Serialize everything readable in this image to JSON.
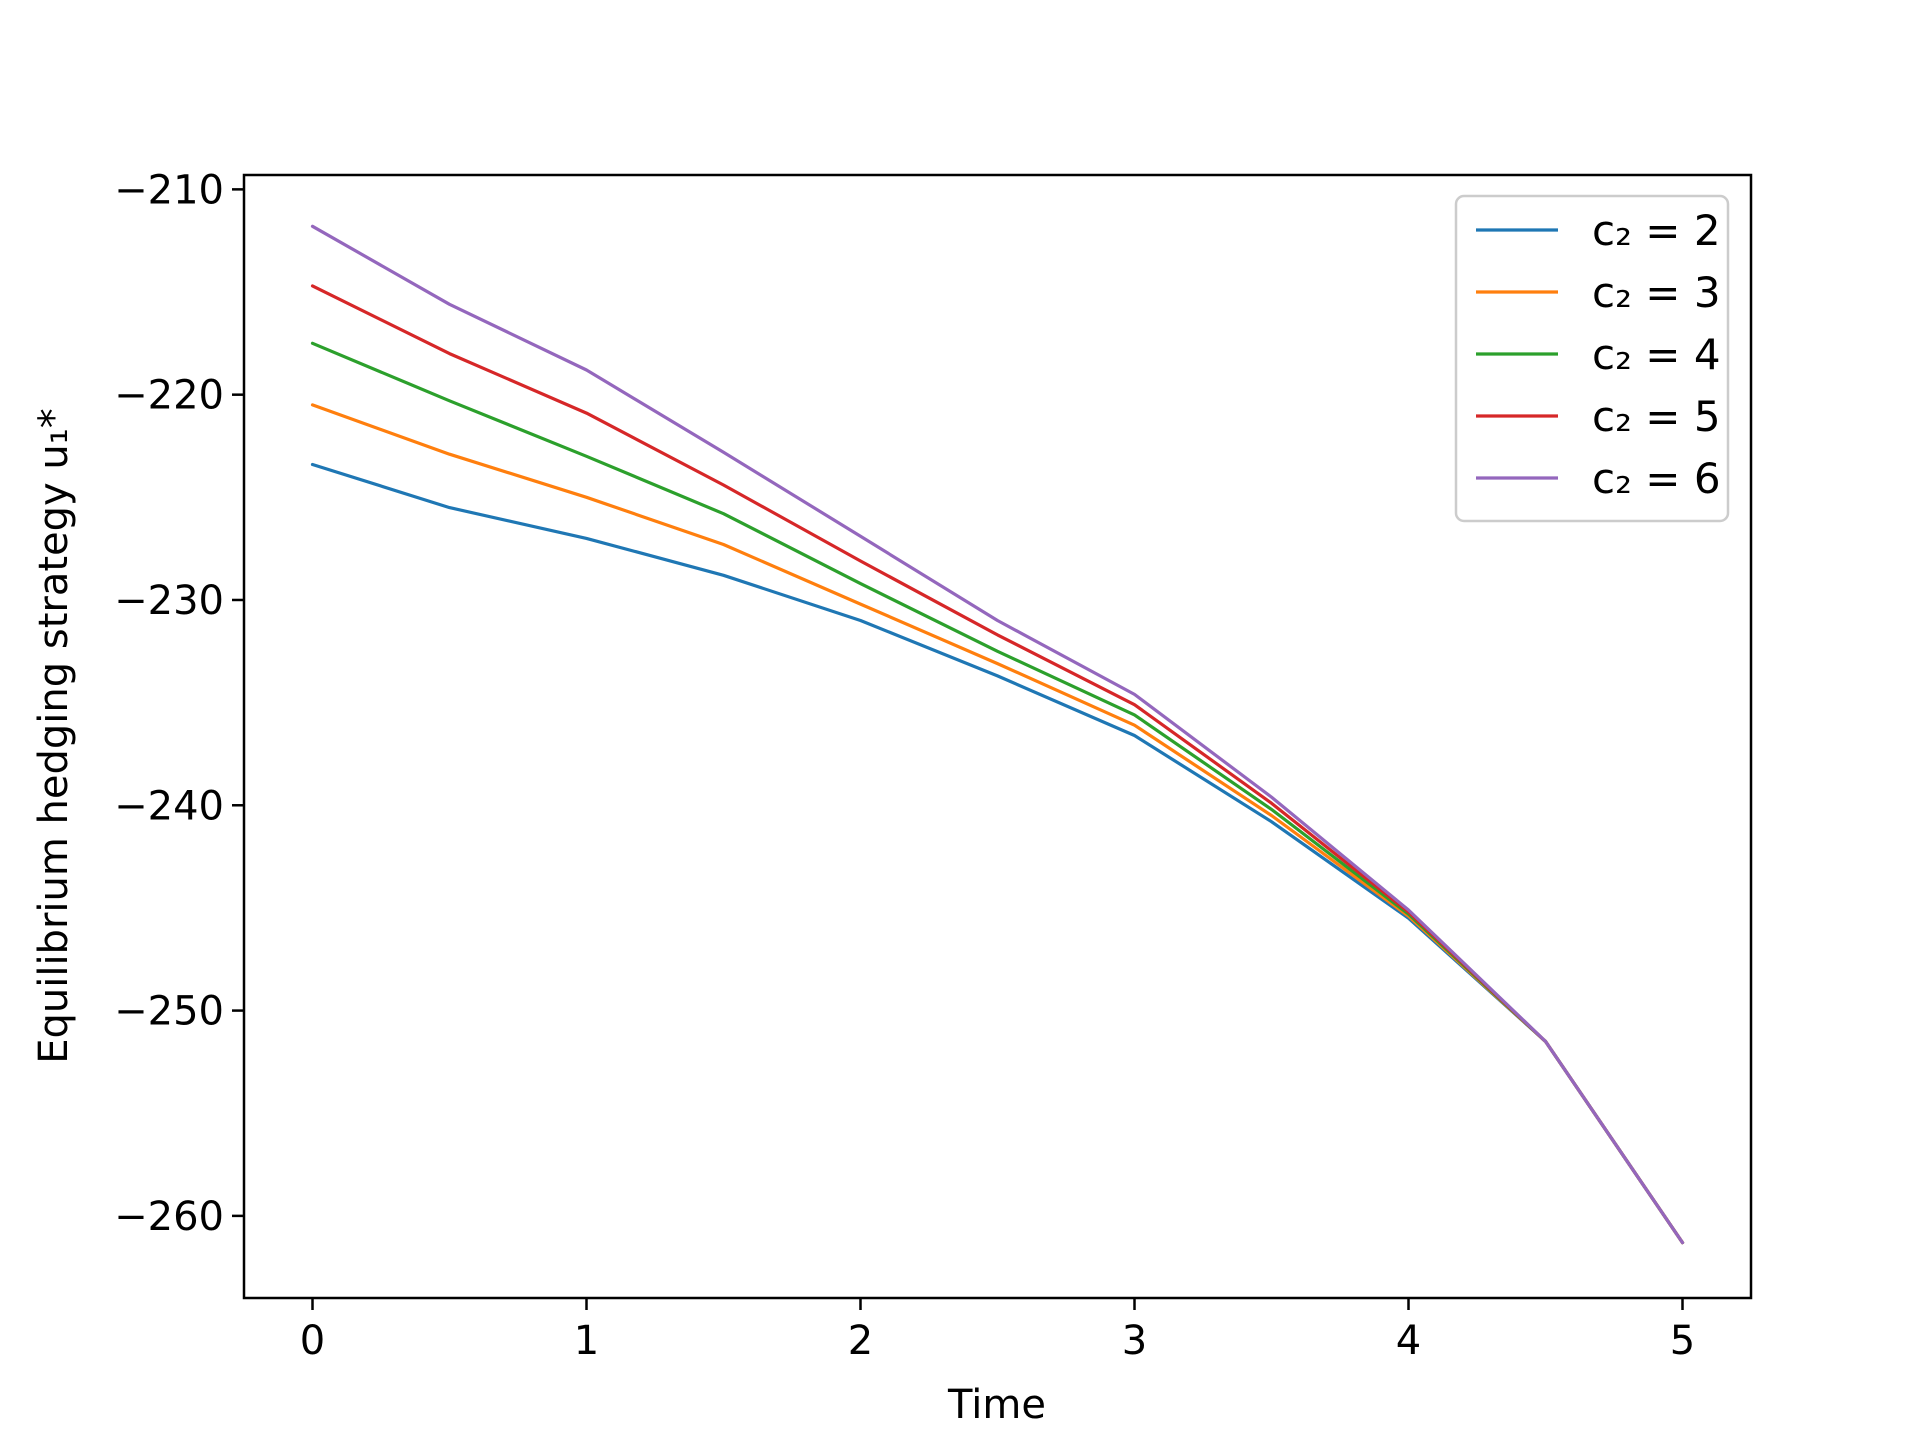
{
  "chart_data": {
    "type": "line",
    "title": "",
    "xlabel": "Time",
    "ylabel": "Equilibrium hedging strategy u₁*",
    "xlim": [
      -0.25,
      5.25
    ],
    "ylim": [
      -264,
      -209.3
    ],
    "xticks": [
      0,
      1,
      2,
      3,
      4,
      5
    ],
    "xtick_labels": [
      "0",
      "1",
      "2",
      "3",
      "4",
      "5"
    ],
    "yticks": [
      -210,
      -220,
      -230,
      -240,
      -250,
      -260
    ],
    "ytick_labels": [
      "−210",
      "−220",
      "−230",
      "−240",
      "−250",
      "−260"
    ],
    "grid": false,
    "legend_position": "top-right",
    "series": [
      {
        "name": "c₂ = 2",
        "color": "#1f77b4",
        "x": [
          0,
          0.5,
          1.0,
          1.5,
          2.0,
          2.5,
          3.0,
          3.5,
          4.0,
          4.5,
          5.0
        ],
        "y": [
          -223.4,
          -225.5,
          -227.0,
          -228.8,
          -231.0,
          -233.7,
          -236.6,
          -240.8,
          -245.5,
          -251.5,
          -261.3
        ]
      },
      {
        "name": "c₂ = 3",
        "color": "#ff7f0e",
        "x": [
          0,
          0.5,
          1.0,
          1.5,
          2.0,
          2.5,
          3.0,
          3.5,
          4.0,
          4.5,
          5.0
        ],
        "y": [
          -220.5,
          -222.9,
          -225.0,
          -227.3,
          -230.2,
          -233.1,
          -236.1,
          -240.5,
          -245.4,
          -251.5,
          -261.3
        ]
      },
      {
        "name": "c₂ = 4",
        "color": "#2ca02c",
        "x": [
          0,
          0.5,
          1.0,
          1.5,
          2.0,
          2.5,
          3.0,
          3.5,
          4.0,
          4.5,
          5.0
        ],
        "y": [
          -217.5,
          -220.3,
          -223.0,
          -225.8,
          -229.2,
          -232.5,
          -235.6,
          -240.2,
          -245.3,
          -251.5,
          -261.3
        ]
      },
      {
        "name": "c₂ = 5",
        "color": "#d62728",
        "x": [
          0,
          0.5,
          1.0,
          1.5,
          2.0,
          2.5,
          3.0,
          3.5,
          4.0,
          4.5,
          5.0
        ],
        "y": [
          -214.7,
          -218.0,
          -220.9,
          -224.4,
          -228.1,
          -231.7,
          -235.1,
          -239.9,
          -245.2,
          -251.5,
          -261.3
        ]
      },
      {
        "name": "c₂ = 6",
        "color": "#9467bd",
        "x": [
          0,
          0.5,
          1.0,
          1.5,
          2.0,
          2.5,
          3.0,
          3.5,
          4.0,
          4.5,
          5.0
        ],
        "y": [
          -211.8,
          -215.6,
          -218.8,
          -222.8,
          -226.9,
          -231.0,
          -234.6,
          -239.6,
          -245.1,
          -251.5,
          -261.3
        ]
      }
    ]
  }
}
